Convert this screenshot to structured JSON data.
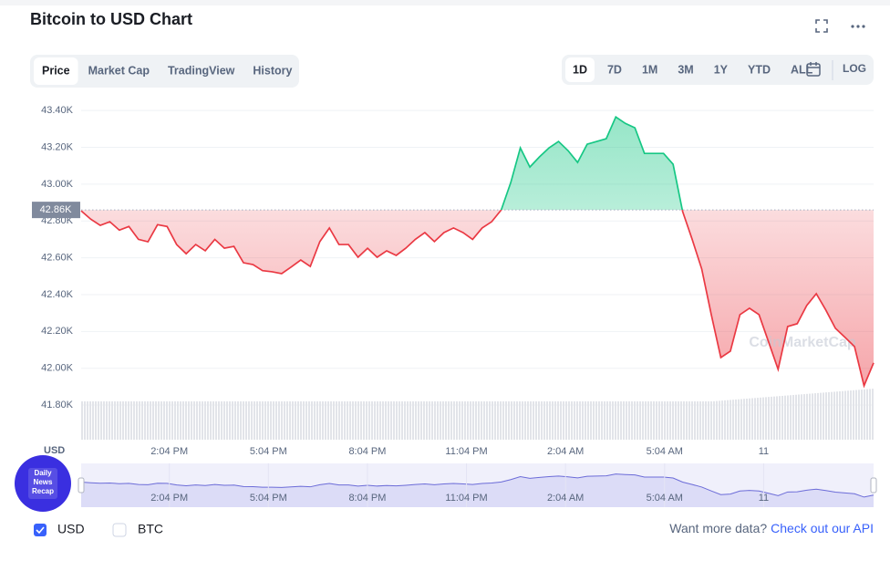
{
  "header": {
    "title": "Bitcoin to USD Chart"
  },
  "tabs": [
    "Price",
    "Market Cap",
    "TradingView",
    "History"
  ],
  "active_tab": 0,
  "ranges": [
    "1D",
    "7D",
    "1M",
    "3M",
    "1Y",
    "YTD",
    "ALL"
  ],
  "active_range": 0,
  "log_button": "LOG",
  "chart_data": {
    "type": "line",
    "currency_label": "USD",
    "watermark": "CoinMarketCap",
    "up_color": "#16c784",
    "down_color": "#ea3943",
    "ylim": [
      41612,
      43480
    ],
    "yticks": [
      {
        "value": 41800,
        "label": "41.80K"
      },
      {
        "value": 42000,
        "label": "42.00K"
      },
      {
        "value": 42200,
        "label": "42.20K"
      },
      {
        "value": 42400,
        "label": "42.40K"
      },
      {
        "value": 42600,
        "label": "42.60K"
      },
      {
        "value": 42800,
        "label": "42.80K"
      },
      {
        "value": 43000,
        "label": "43.00K"
      },
      {
        "value": 43200,
        "label": "43.20K"
      },
      {
        "value": 43400,
        "label": "43.40K"
      }
    ],
    "baseline": {
      "value": 42860,
      "label": "42.86K"
    },
    "x_labels": [
      "2:04 PM",
      "5:04 PM",
      "8:04 PM",
      "11:04 PM",
      "2:04 AM",
      "5:04 AM",
      "11"
    ],
    "values": [
      42855,
      42810,
      42776,
      42796,
      42750,
      42770,
      42700,
      42687,
      42780,
      42770,
      42672,
      42622,
      42672,
      42638,
      42700,
      42652,
      42662,
      42573,
      42563,
      42530,
      42524,
      42514,
      42550,
      42588,
      42553,
      42688,
      42762,
      42672,
      42672,
      42603,
      42652,
      42603,
      42638,
      42613,
      42652,
      42700,
      42737,
      42688,
      42737,
      42762,
      42737,
      42700,
      42762,
      42796,
      42860,
      43009,
      43197,
      43093,
      43148,
      43197,
      43232,
      43182,
      43118,
      43217,
      43232,
      43247,
      43365,
      43330,
      43306,
      43167,
      43167,
      43167,
      43108,
      42851,
      42700,
      42539,
      42291,
      42058,
      42093,
      42291,
      42326,
      42291,
      42143,
      41994,
      42227,
      42242,
      42341,
      42405,
      42316,
      42217,
      42168,
      42118,
      41905,
      42029
    ]
  },
  "legend": [
    "USD",
    "BTC"
  ],
  "footer": {
    "prompt": "Want more data?",
    "link": "Check out our API"
  },
  "badge": [
    "Daily",
    "News",
    "Recap"
  ]
}
